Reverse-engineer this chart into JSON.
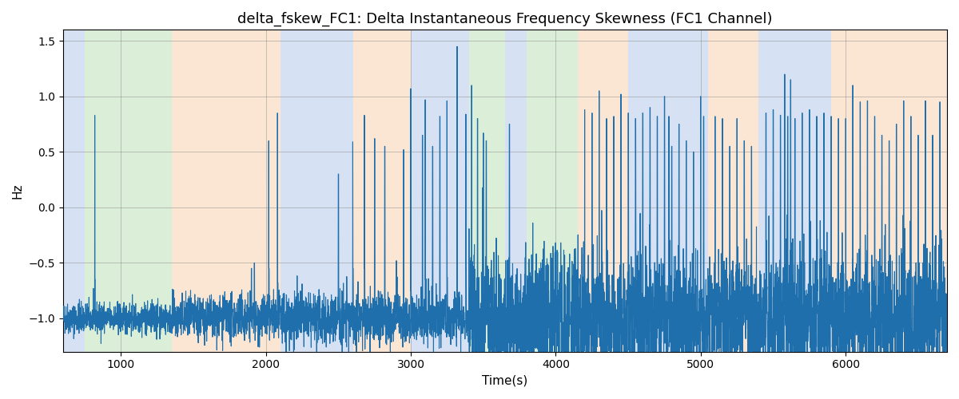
{
  "title": "delta_fskew_FC1: Delta Instantaneous Frequency Skewness (FC1 Channel)",
  "xlabel": "Time(s)",
  "ylabel": "Hz",
  "xlim": [
    600,
    6700
  ],
  "ylim": [
    -1.3,
    1.6
  ],
  "line_color": "#1f6fad",
  "line_width": 0.8,
  "background_color": "#ffffff",
  "yticks": [
    -1.0,
    -0.5,
    0.0,
    0.5,
    1.0,
    1.5
  ],
  "xticks": [
    1000,
    2000,
    3000,
    4000,
    5000,
    6000
  ],
  "bands": [
    {
      "xmin": 600,
      "xmax": 750,
      "color": "#aec6e8",
      "alpha": 0.5
    },
    {
      "xmin": 750,
      "xmax": 1350,
      "color": "#b8dfb0",
      "alpha": 0.5
    },
    {
      "xmin": 1350,
      "xmax": 2100,
      "color": "#f9cfaa",
      "alpha": 0.5
    },
    {
      "xmin": 2100,
      "xmax": 2600,
      "color": "#aec6e8",
      "alpha": 0.5
    },
    {
      "xmin": 2600,
      "xmax": 3000,
      "color": "#f9cfaa",
      "alpha": 0.5
    },
    {
      "xmin": 3000,
      "xmax": 3400,
      "color": "#aec6e8",
      "alpha": 0.5
    },
    {
      "xmin": 3400,
      "xmax": 3650,
      "color": "#b8dfb0",
      "alpha": 0.5
    },
    {
      "xmin": 3650,
      "xmax": 3800,
      "color": "#aec6e8",
      "alpha": 0.5
    },
    {
      "xmin": 3800,
      "xmax": 4150,
      "color": "#b8dfb0",
      "alpha": 0.5
    },
    {
      "xmin": 4150,
      "xmax": 4500,
      "color": "#f9cfaa",
      "alpha": 0.5
    },
    {
      "xmin": 4500,
      "xmax": 5050,
      "color": "#aec6e8",
      "alpha": 0.5
    },
    {
      "xmin": 5050,
      "xmax": 5400,
      "color": "#f9cfaa",
      "alpha": 0.5
    },
    {
      "xmin": 5400,
      "xmax": 5900,
      "color": "#aec6e8",
      "alpha": 0.5
    },
    {
      "xmin": 5900,
      "xmax": 6700,
      "color": "#f9cfaa",
      "alpha": 0.5
    }
  ],
  "t_start": 600,
  "t_end": 6700,
  "n_points": 6100,
  "title_fontsize": 13,
  "label_fontsize": 11,
  "tick_fontsize": 10
}
